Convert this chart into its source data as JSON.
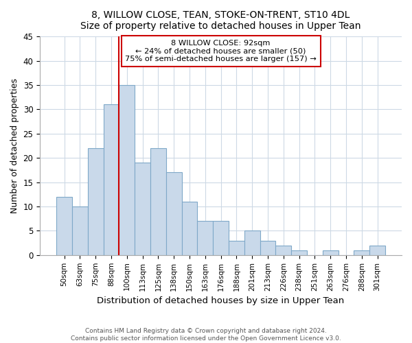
{
  "title": "8, WILLOW CLOSE, TEAN, STOKE-ON-TRENT, ST10 4DL",
  "subtitle": "Size of property relative to detached houses in Upper Tean",
  "xlabel": "Distribution of detached houses by size in Upper Tean",
  "ylabel": "Number of detached properties",
  "bar_labels": [
    "50sqm",
    "63sqm",
    "75sqm",
    "88sqm",
    "100sqm",
    "113sqm",
    "125sqm",
    "138sqm",
    "150sqm",
    "163sqm",
    "176sqm",
    "188sqm",
    "201sqm",
    "213sqm",
    "226sqm",
    "238sqm",
    "251sqm",
    "263sqm",
    "276sqm",
    "288sqm",
    "301sqm"
  ],
  "bar_values": [
    12,
    10,
    22,
    31,
    35,
    19,
    22,
    17,
    11,
    7,
    7,
    3,
    5,
    3,
    2,
    1,
    0,
    1,
    0,
    1,
    2
  ],
  "bar_color": "#c9d9ea",
  "bar_edge_color": "#7fa8c8",
  "ylim": [
    0,
    45
  ],
  "yticks": [
    0,
    5,
    10,
    15,
    20,
    25,
    30,
    35,
    40,
    45
  ],
  "vline_x": 3.5,
  "vline_color": "#cc0000",
  "annotation_title": "8 WILLOW CLOSE: 92sqm",
  "annotation_line1": "← 24% of detached houses are smaller (50)",
  "annotation_line2": "75% of semi-detached houses are larger (157) →",
  "annotation_box_color": "#ffffff",
  "annotation_box_edge": "#cc0000",
  "footer1": "Contains HM Land Registry data © Crown copyright and database right 2024.",
  "footer2": "Contains public sector information licensed under the Open Government Licence v3.0.",
  "background_color": "#ffffff",
  "grid_color": "#cdd9e5"
}
